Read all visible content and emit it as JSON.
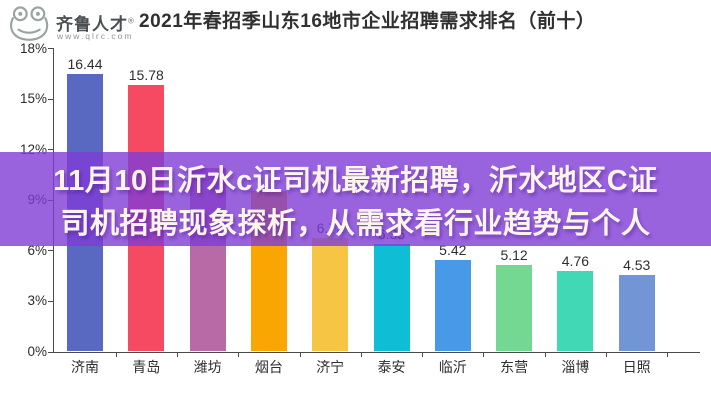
{
  "header": {
    "logo": {
      "brand": "齐鲁人才",
      "trademark": "®",
      "website": "www.qlrc.com",
      "icon": "frog-icon",
      "brand_color": "#4B4F52",
      "icon_color": "#98A49E"
    },
    "title": "2021年春招季山东16地市企业招聘需求排名（前十）"
  },
  "overlay_banner": {
    "text_line1": "11月10日沂水c证司机最新招聘，沂水地区C证",
    "text_line2": "司机招聘现象探析，从需求看行业趋势与个人",
    "background_color": "#7F3CD6",
    "background_opacity": 0.8,
    "text_color": "#FCF5EC"
  },
  "chart_data": {
    "type": "bar",
    "title": "2021年春招季山东16地市企业招聘需求排名（前十）",
    "xlabel": "",
    "ylabel": "",
    "ylim": [
      0,
      18
    ],
    "y_ticks": [
      "18%",
      "15%",
      "12%",
      "9%",
      "6%",
      "3%",
      "0%"
    ],
    "grid": false,
    "legend_position": "none",
    "categories": [
      "济南",
      "青岛",
      "潍坊",
      "烟台",
      "济宁",
      "泰安",
      "临沂",
      "东营",
      "淄博",
      "日照"
    ],
    "values": [
      16.44,
      15.78,
      10.9,
      9.5,
      6.72,
      6.35,
      5.42,
      5.12,
      4.76,
      4.53
    ],
    "value_labels": [
      "16.44",
      "15.78",
      "",
      "",
      "6.72",
      "6.35",
      "5.42",
      "5.12",
      "4.76",
      "4.53"
    ],
    "bar_colors": [
      "#5968C0",
      "#F54A62",
      "#B76AA6",
      "#F9A602",
      "#F6C544",
      "#0FBDD4",
      "#489AE8",
      "#74D893",
      "#40D8B5",
      "#7295D6"
    ],
    "axis_color": "#4A4A4A",
    "label_color": "#2E2E2E",
    "note": "潍坊 and 烟台 bar tops and data labels are obscured by the overlay banner; their values are estimated from the bar silhouettes visible through it."
  }
}
